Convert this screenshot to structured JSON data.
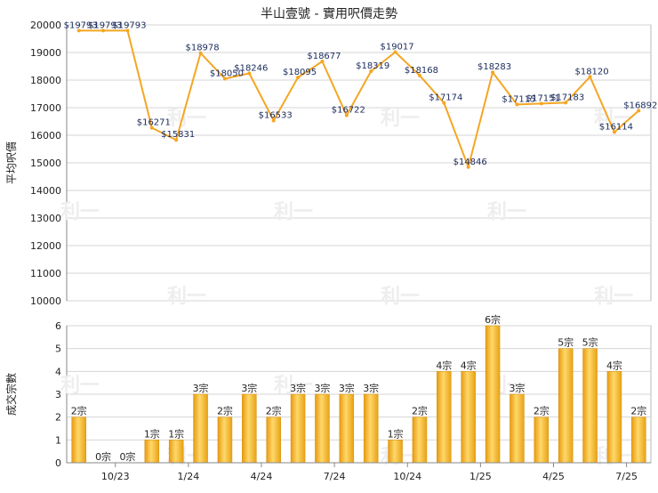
{
  "chart_data": [
    {
      "type": "line",
      "title": "半山壹號 - 實用呎價走勢",
      "ylabel": "平均呎價",
      "ylim": [
        10000,
        20000
      ],
      "yticks": [
        10000,
        11000,
        12000,
        13000,
        14000,
        15000,
        16000,
        17000,
        18000,
        19000,
        20000
      ],
      "grid": true,
      "color": "#f5a623",
      "values": [
        19793,
        19793,
        19793,
        16271,
        15831,
        18978,
        18050,
        18246,
        16533,
        18095,
        18677,
        16722,
        18319,
        19017,
        18168,
        17174,
        14846,
        18283,
        17115,
        17151,
        17183,
        18120,
        16114,
        16892
      ],
      "point_labels": [
        "$19793",
        "$19793",
        "$19793",
        "$16271",
        "$15831",
        "$18978",
        "$18050",
        "$18246",
        "$16533",
        "$18095",
        "$18677",
        "$16722",
        "$18319",
        "$19017",
        "$18168",
        "$17174",
        "$14846",
        "$18283",
        "$17115",
        "$17151",
        "$17183",
        "$18120",
        "$16114",
        "$16892"
      ]
    },
    {
      "type": "bar",
      "ylabel": "成交宗數",
      "ylim": [
        0,
        6
      ],
      "yticks": [
        0,
        1,
        2,
        3,
        4,
        5,
        6
      ],
      "grid": true,
      "color": "#f2b01e",
      "values": [
        2,
        0,
        0,
        1,
        1,
        3,
        2,
        3,
        2,
        3,
        3,
        3,
        3,
        1,
        2,
        4,
        4,
        6,
        3,
        2,
        5,
        5,
        4,
        2
      ],
      "bar_labels": [
        "2宗",
        "0宗",
        "0宗",
        "1宗",
        "1宗",
        "3宗",
        "2宗",
        "3宗",
        "2宗",
        "3宗",
        "3宗",
        "3宗",
        "3宗",
        "1宗",
        "2宗",
        "4宗",
        "4宗",
        "6宗",
        "3宗",
        "2宗",
        "5宗",
        "5宗",
        "4宗",
        "2宗"
      ],
      "xtick_labels": [
        "10/23",
        "1/24",
        "4/24",
        "7/24",
        "10/24",
        "1/25",
        "4/25",
        "7/25"
      ],
      "xtick_after_index": [
        1,
        4,
        7,
        10,
        13,
        16,
        19,
        22
      ]
    }
  ],
  "watermark": "利一"
}
